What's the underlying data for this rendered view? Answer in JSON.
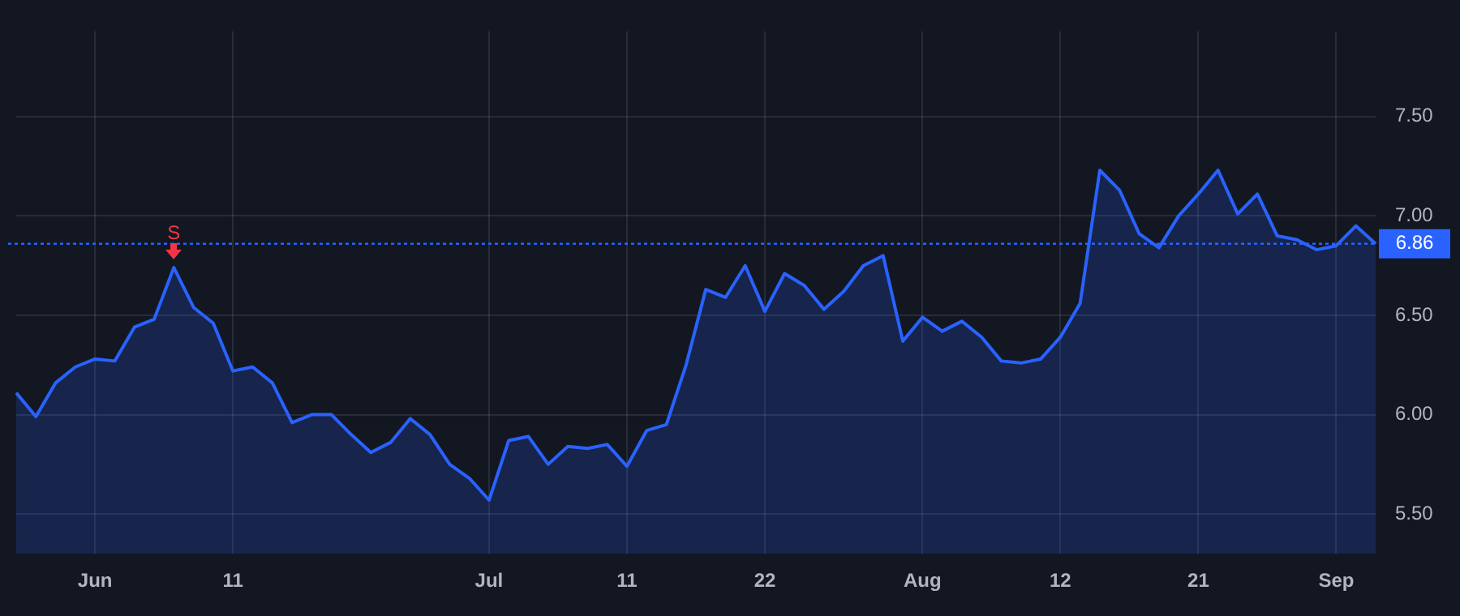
{
  "chart_data": {
    "type": "area",
    "categories": [
      null,
      null,
      null,
      null,
      "Jun",
      null,
      null,
      null,
      null,
      null,
      null,
      "11",
      null,
      null,
      null,
      null,
      null,
      null,
      null,
      null,
      null,
      null,
      null,
      null,
      "Jul",
      null,
      null,
      null,
      null,
      null,
      null,
      "11",
      null,
      null,
      null,
      null,
      null,
      null,
      "22",
      null,
      null,
      null,
      null,
      null,
      null,
      null,
      "Aug",
      null,
      null,
      null,
      null,
      null,
      null,
      "12",
      null,
      null,
      null,
      null,
      null,
      null,
      "21",
      null,
      null,
      null,
      null,
      null,
      null,
      "Sep",
      null,
      null
    ],
    "series": [
      {
        "color": "#2962ff",
        "values": [
          6.11,
          5.99,
          6.16,
          6.24,
          6.28,
          6.27,
          6.44,
          6.48,
          6.74,
          6.54,
          6.46,
          6.22,
          6.24,
          6.16,
          5.96,
          6.0,
          6.0,
          5.9,
          5.81,
          5.86,
          5.98,
          5.9,
          5.75,
          5.68,
          5.57,
          5.87,
          5.89,
          5.75,
          5.84,
          5.83,
          5.85,
          5.74,
          5.92,
          5.95,
          6.25,
          6.63,
          6.59,
          6.75,
          6.52,
          6.71,
          6.65,
          6.53,
          6.62,
          6.75,
          6.8,
          6.37,
          6.49,
          6.42,
          6.47,
          6.39,
          6.27,
          6.26,
          6.28,
          6.39,
          6.56,
          7.23,
          7.13,
          6.91,
          6.84,
          7.0,
          7.11,
          7.23,
          7.01,
          7.11,
          6.9,
          6.88,
          6.83,
          6.85,
          6.95,
          6.86
        ]
      }
    ],
    "ylim": [
      5.3,
      7.93
    ],
    "yticks": [
      {
        "value": 5.5,
        "label": "5.50"
      },
      {
        "value": 6,
        "label": "6.00"
      },
      {
        "value": 6.5,
        "label": "6.50"
      },
      {
        "value": 7,
        "label": "7.00"
      },
      {
        "value": 7.5,
        "label": "7.50"
      }
    ],
    "ref_lines": [
      {
        "axis": "y",
        "value": 6.86,
        "label": "6.86",
        "color": "#2962ff",
        "line_style": "dotted"
      }
    ],
    "annotations": [
      {
        "text": "S",
        "y": 6.74
      }
    ],
    "grid": true,
    "legend": false
  }
}
